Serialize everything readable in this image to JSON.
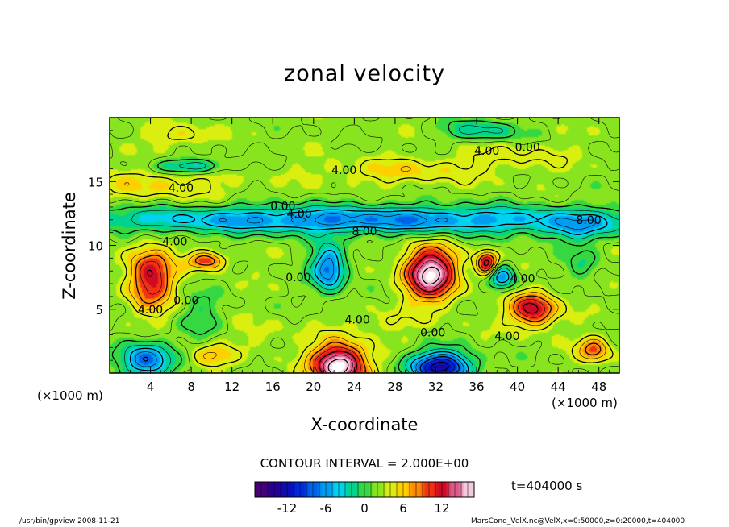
{
  "chart_data": {
    "type": "heatmap",
    "title": "zonal velocity",
    "xlabel": "X-coordinate",
    "ylabel": "Z-coordinate",
    "x_unit": "(×1000 m)",
    "z_unit": "(×1000 m)",
    "x_ticks": [
      4,
      8,
      12,
      16,
      20,
      24,
      28,
      32,
      36,
      40,
      44,
      48
    ],
    "y_ticks": [
      5,
      10,
      15
    ],
    "xlim": [
      0,
      50
    ],
    "ylim": [
      0,
      20
    ],
    "contour_interval_label": "CONTOUR INTERVAL = 2.000E+00",
    "time_label": "t=404000 s",
    "colorbar": {
      "range": [
        -17,
        17
      ],
      "ticks": [
        -12,
        -6,
        0,
        6,
        12
      ]
    },
    "contour_labels": [
      {
        "text": "4.00",
        "x": 7,
        "z": 14.5
      },
      {
        "text": "4.00",
        "x": 23,
        "z": 15.9
      },
      {
        "text": "4.00",
        "x": 37,
        "z": 17.4
      },
      {
        "text": "0.00",
        "x": 41,
        "z": 17.7
      },
      {
        "text": "0.00",
        "x": 17,
        "z": 13.1
      },
      {
        "text": "4.00",
        "x": 18.6,
        "z": 12.5
      },
      {
        "text": "8.00",
        "x": 25,
        "z": 11.1
      },
      {
        "text": "8.00",
        "x": 47,
        "z": 12.0
      },
      {
        "text": "4.00",
        "x": 6.4,
        "z": 10.3
      },
      {
        "text": "0.00",
        "x": 18.5,
        "z": 7.5
      },
      {
        "text": "4.00",
        "x": 40.5,
        "z": 7.4
      },
      {
        "text": "4.00",
        "x": 4,
        "z": 5.0
      },
      {
        "text": "0.00",
        "x": 7.5,
        "z": 5.7
      },
      {
        "text": "4.00",
        "x": 24.3,
        "z": 4.2
      },
      {
        "text": "0.00",
        "x": 31.7,
        "z": 3.2
      },
      {
        "text": "4.00",
        "x": 39.0,
        "z": 2.9
      }
    ],
    "blobs": [
      {
        "x": 4,
        "z": 7.5,
        "sx": 2.2,
        "sz": 2.4,
        "a": 10
      },
      {
        "x": 9.5,
        "z": 8.8,
        "sx": 1.8,
        "sz": 0.7,
        "a": 8
      },
      {
        "x": 31.5,
        "z": 7.8,
        "sx": 2.5,
        "sz": 2.0,
        "a": 15
      },
      {
        "x": 37,
        "z": 8.6,
        "sx": 1.0,
        "sz": 0.9,
        "a": 11
      },
      {
        "x": 41.5,
        "z": 5.0,
        "sx": 2.2,
        "sz": 1.3,
        "a": 11
      },
      {
        "x": 47.5,
        "z": 1.8,
        "sx": 1.5,
        "sz": 1.0,
        "a": 7
      },
      {
        "x": 22.5,
        "z": 0.6,
        "sx": 2.6,
        "sz": 1.7,
        "a": 16
      },
      {
        "x": 10,
        "z": 1.3,
        "sx": 2.2,
        "sz": 0.9,
        "a": 4
      },
      {
        "x": 5,
        "z": 14.8,
        "sx": 7,
        "sz": 1.3,
        "a": 3
      },
      {
        "x": 29,
        "z": 15.8,
        "sx": 8,
        "sz": 1.0,
        "a": 3
      },
      {
        "x": 7,
        "z": 18.6,
        "sx": 3,
        "sz": 0.8,
        "a": 3
      },
      {
        "x": 40,
        "z": 17.0,
        "sx": 6,
        "sz": 1.0,
        "a": 2
      },
      {
        "x": 25,
        "z": 12.0,
        "sx": 30,
        "sz": 1.1,
        "a": -9
      },
      {
        "x": 46,
        "z": 11.2,
        "sx": 3.5,
        "sz": 1.0,
        "a": -4
      },
      {
        "x": 8,
        "z": 16.2,
        "sx": 3.5,
        "sz": 0.6,
        "a": -6
      },
      {
        "x": 36.5,
        "z": 19.0,
        "sx": 3.5,
        "sz": 0.8,
        "a": -5
      },
      {
        "x": 21.5,
        "z": 8.2,
        "sx": 1.7,
        "sz": 1.8,
        "a": -10
      },
      {
        "x": 38.5,
        "z": 7.5,
        "sx": 1.3,
        "sz": 1.0,
        "a": -8
      },
      {
        "x": 32.5,
        "z": 0.5,
        "sx": 3.0,
        "sz": 1.2,
        "a": -15
      },
      {
        "x": 3.5,
        "z": 1.0,
        "sx": 2.5,
        "sz": 1.4,
        "a": -10
      },
      {
        "x": 9,
        "z": 4.5,
        "sx": 2.0,
        "sz": 1.8,
        "a": -3
      },
      {
        "x": 46.5,
        "z": 8.5,
        "sx": 1.6,
        "sz": 1.5,
        "a": -3
      },
      {
        "x": 15,
        "z": 3.0,
        "sx": 2.5,
        "sz": 1.2,
        "a": 1.5
      },
      {
        "x": 27,
        "z": 4.0,
        "sx": 4.0,
        "sz": 1.0,
        "a": 1.5
      }
    ]
  },
  "footer_left": "/usr/bin/gpview  2008-11-21",
  "footer_right": "MarsCond_VelX.nc@VelX,x=0:50000,z=0:20000,t=404000"
}
